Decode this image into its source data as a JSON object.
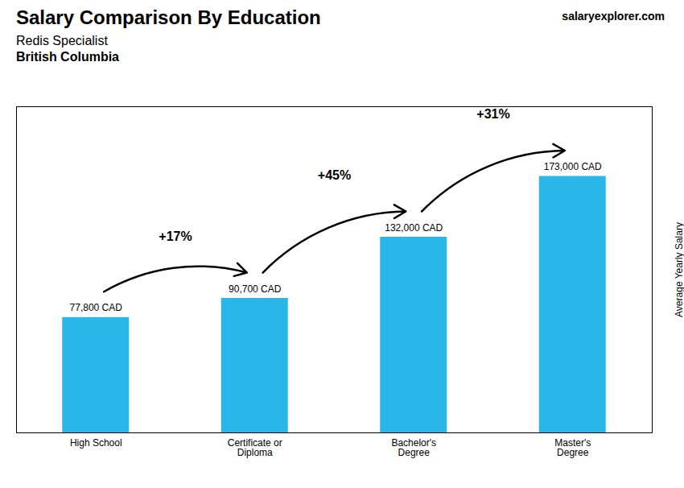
{
  "chart_data": {
    "type": "bar",
    "title": "Salary Comparison By Education",
    "subtitle": [
      "Redis Specialist",
      "British Columbia"
    ],
    "caption": "salaryexplorer.com",
    "y_label": "Average Yearly Salary",
    "categories": [
      "High School",
      "Certificate or\nDiploma",
      "Bachelor's\nDegree",
      "Master's\nDegree"
    ],
    "values": [
      77800,
      90700,
      132000,
      173000
    ],
    "value_labels": [
      "77,800 CAD",
      "90,700 CAD",
      "132,000 CAD",
      "173,000 CAD"
    ],
    "data_labels": true,
    "annotations": [
      "+17%",
      "+45%",
      "+31%"
    ],
    "color": "#29b6e8",
    "ylim": [
      0,
      220000
    ],
    "yticks": [],
    "tick_labels": "x",
    "grid": false
  }
}
